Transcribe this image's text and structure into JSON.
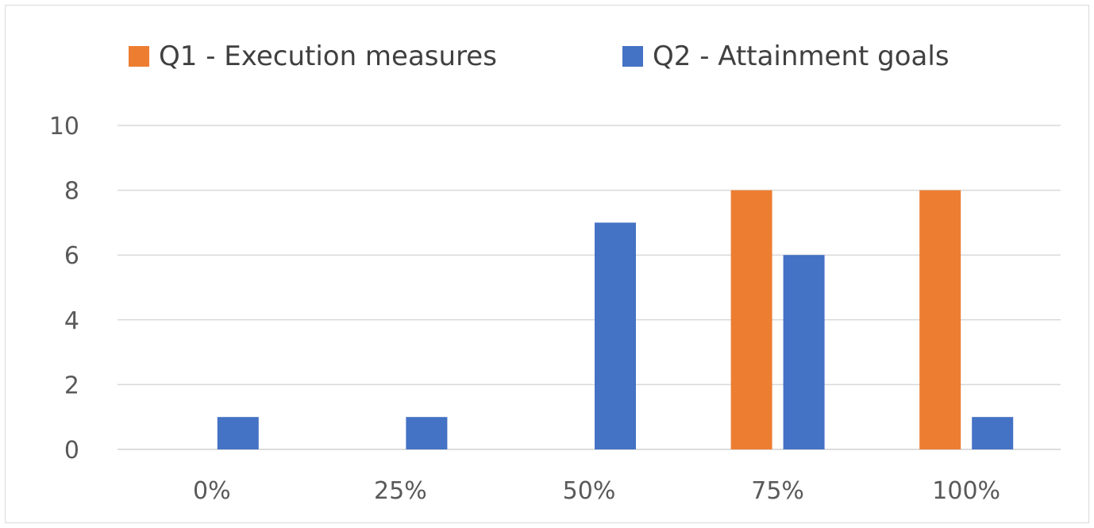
{
  "chart_data": {
    "type": "bar",
    "categories": [
      "0%",
      "25%",
      "50%",
      "75%",
      "100%"
    ],
    "series": [
      {
        "name": "Q1 - Execution measures",
        "color": "#ED7D31",
        "values": [
          0,
          0,
          0,
          8,
          8
        ]
      },
      {
        "name": "Q2 - Attainment goals",
        "color": "#4472C4",
        "values": [
          1,
          1,
          7,
          6,
          1
        ]
      }
    ],
    "ylim": [
      0,
      10
    ],
    "yticks": [
      0,
      2,
      4,
      6,
      8,
      10
    ],
    "grid": true,
    "legend_position": "top"
  }
}
